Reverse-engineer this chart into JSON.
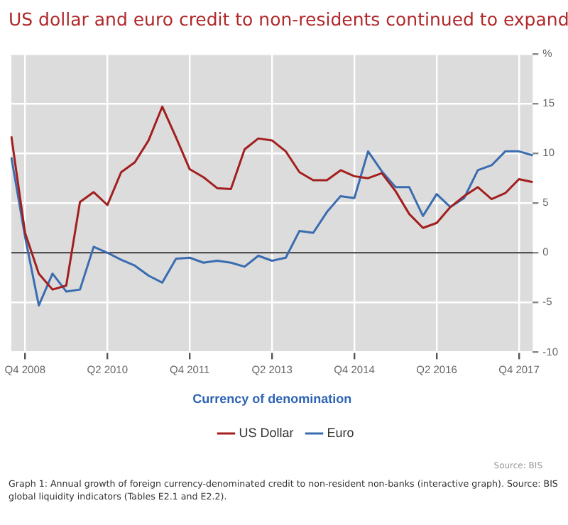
{
  "chart_data": {
    "type": "line",
    "title": "US dollar and euro credit to non-residents continued to expand",
    "xlabel": "Currency of denomination",
    "categories": [
      null,
      "Q4 2008",
      null,
      null,
      null,
      null,
      null,
      "Q2 2010",
      null,
      null,
      null,
      null,
      null,
      "Q4 2011",
      null,
      null,
      null,
      null,
      null,
      "Q2 2013",
      null,
      null,
      null,
      null,
      null,
      "Q4 2014",
      null,
      null,
      null,
      null,
      null,
      "Q2 2016",
      null,
      null,
      null,
      null,
      null,
      "Q4 2017",
      null
    ],
    "series": [
      {
        "name": "US Dollar",
        "color": "#a31f1f",
        "values": [
          11.7,
          2.0,
          -2.1,
          -3.7,
          -3.3,
          5.1,
          6.1,
          4.8,
          8.1,
          9.1,
          11.3,
          14.7,
          11.6,
          8.4,
          7.6,
          6.5,
          6.4,
          10.4,
          11.5,
          11.3,
          10.2,
          8.1,
          7.3,
          7.3,
          8.3,
          7.7,
          7.5,
          8.0,
          6.2,
          3.9,
          2.5,
          3.0,
          4.6,
          5.7,
          6.6,
          5.4,
          6.0,
          7.4,
          7.1
        ]
      },
      {
        "name": "Euro",
        "color": "#3a6cb0",
        "values": [
          9.6,
          1.6,
          -5.3,
          -2.1,
          -3.9,
          -3.7,
          0.6,
          0,
          -0.7,
          -1.3,
          -2.3,
          -3.0,
          -0.6,
          -0.5,
          -1.0,
          -0.8,
          -1.0,
          -1.4,
          -0.3,
          -0.8,
          -0.5,
          2.2,
          2.0,
          4.1,
          5.7,
          5.5,
          10.2,
          8.2,
          6.6,
          6.6,
          3.7,
          5.9,
          4.6,
          5.5,
          8.3,
          8.8,
          10.2,
          10.2,
          9.8
        ]
      }
    ],
    "ylim": [
      -10,
      20
    ],
    "yticks": [
      -10,
      -5,
      0,
      5,
      10,
      15,
      {
        "value": 20,
        "label": "%"
      }
    ],
    "grid": true,
    "legend": "bottom",
    "marker": "none",
    "line_style": "solid",
    "ref_lines": [
      {
        "axis": "y",
        "value": 0,
        "color": "#333333"
      }
    ],
    "annotations": [
      "Source: BIS",
      "Graph 1: Annual growth of foreign currency-denominated credit to non-resident non-banks (interactive graph). Source: BIS global liquidity indicators (Tables E2.1 and E2.2)."
    ]
  }
}
